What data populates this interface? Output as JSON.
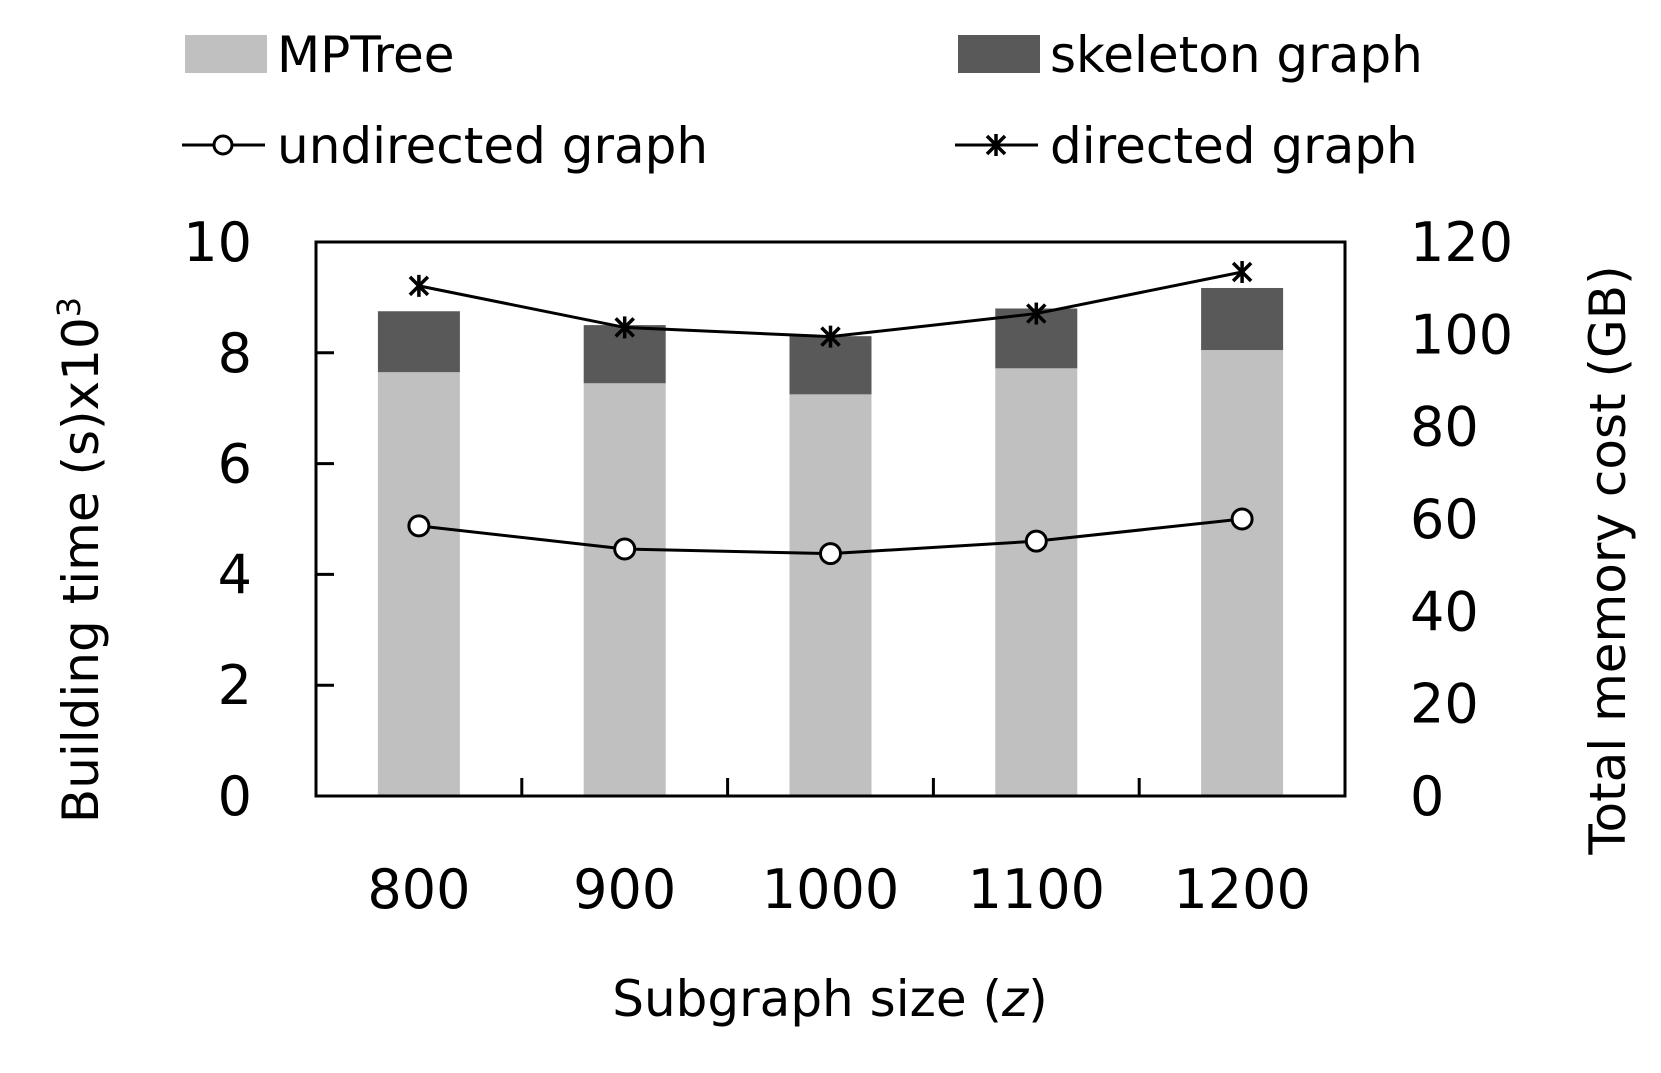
{
  "chart_data": {
    "type": "bar",
    "categories": [
      "800",
      "900",
      "1000",
      "1100",
      "1200"
    ],
    "series": [
      {
        "name": "MPTree",
        "kind": "stacked-bar",
        "axis": "left",
        "color": "#c0c0c0",
        "values": [
          7.65,
          7.45,
          7.25,
          7.72,
          8.05
        ]
      },
      {
        "name": "skeleton graph",
        "kind": "stacked-bar",
        "axis": "left",
        "color": "#595959",
        "values": [
          1.1,
          1.05,
          1.05,
          1.08,
          1.12
        ]
      },
      {
        "name": "undirected graph",
        "kind": "line",
        "axis": "right",
        "marker": "circle",
        "color": "#000000",
        "values": [
          58.5,
          53.5,
          52.5,
          55.2,
          60.0
        ]
      },
      {
        "name": "directed graph",
        "kind": "line",
        "axis": "right",
        "marker": "star",
        "color": "#000000",
        "values": [
          110.5,
          101.5,
          99.5,
          104.5,
          113.5
        ]
      }
    ],
    "xlabel_main": "Subgraph size (",
    "xlabel_var": "z",
    "xlabel_end": ")",
    "ylabel_left": "Building time (s)x10",
    "ylabel_left_sup": "3",
    "ylabel_right": "Total memory cost (GB)",
    "y_left_range": [
      0,
      10
    ],
    "y_left_ticks": [
      "0",
      "2",
      "4",
      "6",
      "8",
      "10"
    ],
    "y_right_range": [
      0,
      120
    ],
    "y_right_ticks": [
      "0",
      "20",
      "40",
      "60",
      "80",
      "100",
      "120"
    ],
    "grid": false,
    "legend_position": "top"
  }
}
